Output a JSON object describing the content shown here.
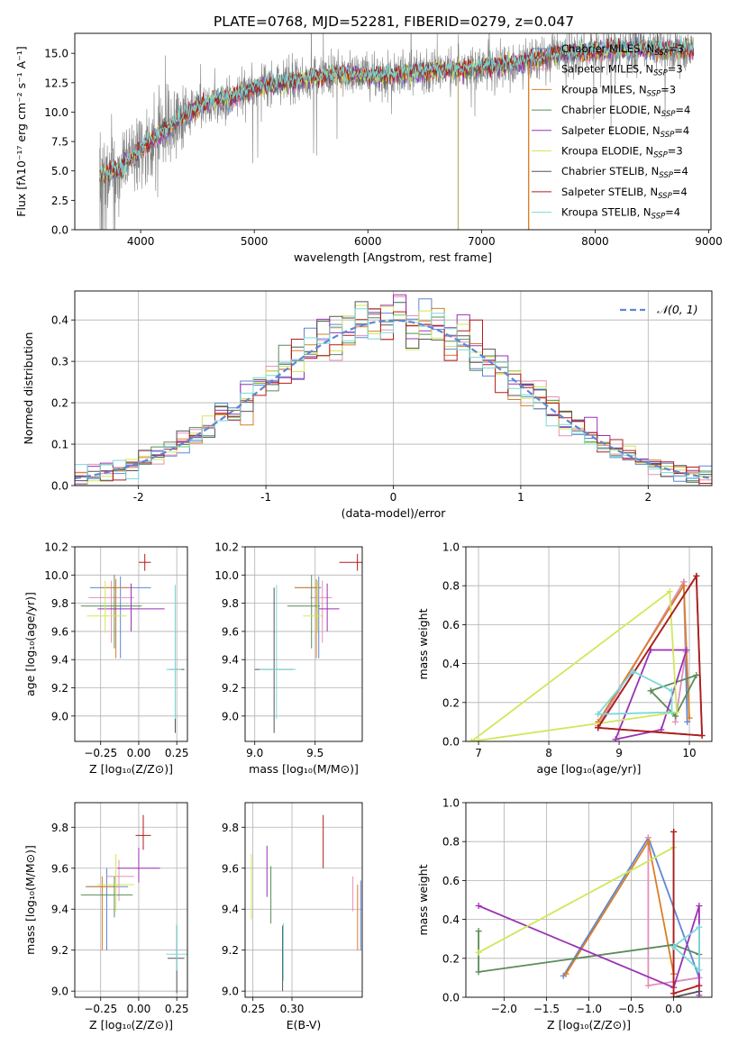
{
  "colors": {
    "chabrier_miles": "#5f86d4",
    "salpeter_miles": "#e58fb9",
    "kroupa_miles": "#d97f26",
    "chabrier_elodie": "#5a8c5a",
    "salpeter_elodie": "#9b31b5",
    "kroupa_elodie": "#cfe85a",
    "chabrier_stelib": "#555555",
    "salpeter_stelib": "#b31b1b",
    "kroupa_stelib": "#7ad9d9",
    "data": "#808080"
  },
  "chart_data": [
    {
      "id": "spectrum",
      "type": "line",
      "title": "PLATE=0768, MJD=52281, FIBERID=0279, z=0.047",
      "xlabel": "wavelength [Angstrom, rest frame]",
      "ylabel": "Flux [fλ10⁻¹⁷ erg cm⁻² s⁻¹ A⁻¹]",
      "xlim": [
        3420,
        9020
      ],
      "ylim": [
        0,
        16.7
      ],
      "xticks": [
        4000,
        5000,
        6000,
        7000,
        8000,
        9000
      ],
      "yticks": [
        0.0,
        2.5,
        5.0,
        7.5,
        10.0,
        12.5,
        15.0
      ],
      "grid": false,
      "legend": "right",
      "model_anchor_x": [
        3640,
        3800,
        4000,
        4200,
        4400,
        4600,
        4800,
        5000,
        5200,
        5400,
        5600,
        5800,
        6000,
        6200,
        6400,
        6600,
        6800,
        7000,
        7200,
        7400,
        7600,
        7800,
        8000,
        8200,
        8400,
        8600,
        8800
      ],
      "model_anchor_y": [
        4.6,
        5.0,
        6.8,
        8.3,
        9.8,
        10.8,
        11.3,
        12.0,
        12.4,
        12.7,
        13.1,
        13.3,
        13.1,
        13.0,
        13.3,
        13.5,
        13.6,
        13.7,
        14.0,
        14.3,
        14.8,
        15.0,
        15.2,
        15.3,
        15.4,
        15.3,
        15.3
      ],
      "series": [
        {
          "name": "Chabrier MILES, N",
          "nssp": "3",
          "color": "#5f86d4"
        },
        {
          "name": "Salpeter MILES, N",
          "nssp": "3",
          "color": "#e58fb9"
        },
        {
          "name": "Kroupa MILES, N",
          "nssp": "3",
          "color": "#d97f26"
        },
        {
          "name": "Chabrier ELODIE, N",
          "nssp": "4",
          "color": "#5a8c5a"
        },
        {
          "name": "Salpeter ELODIE, N",
          "nssp": "4",
          "color": "#9b31b5"
        },
        {
          "name": "Kroupa ELODIE, N",
          "nssp": "3",
          "color": "#cfe85a"
        },
        {
          "name": "Chabrier STELIB, N",
          "nssp": "4",
          "color": "#555555"
        },
        {
          "name": "Salpeter STELIB, N",
          "nssp": "4",
          "color": "#b31b1b"
        },
        {
          "name": "Kroupa STELIB, N",
          "nssp": "4",
          "color": "#7ad9d9"
        }
      ]
    },
    {
      "id": "residuals",
      "type": "line",
      "xlabel": "(data-model)/error",
      "ylabel": "Normed distribution",
      "xlim": [
        -2.5,
        2.5
      ],
      "ylim": [
        0,
        0.47
      ],
      "xticks": [
        -2,
        -1,
        0,
        1,
        2
      ],
      "yticks": [
        0.0,
        0.1,
        0.2,
        0.3,
        0.4
      ],
      "grid": true,
      "legend": "top-right",
      "legend_label": "𝒩(0, 1)",
      "curve": "normal pdf, mean 0, sigma 1",
      "bin_width": 0.1
    },
    {
      "id": "age_vs_Z",
      "type": "scatter",
      "xlabel": "Z [log₁₀(Z/Z⊙)]",
      "ylabel": "age  [log₁₀(age/yr)]",
      "xlim": [
        -0.42,
        0.32
      ],
      "ylim": [
        8.82,
        10.2
      ],
      "xticks": [
        -0.25,
        0.0,
        0.25
      ],
      "xticklabels": [
        "−0.25",
        "0.00",
        "0.25"
      ],
      "yticks": [
        9.0,
        9.2,
        9.4,
        9.6,
        9.8,
        10.0,
        10.2
      ],
      "grid": true,
      "points": [
        {
          "series": "Chabrier MILES",
          "x": -0.12,
          "y": 9.91,
          "xerr": [
            0.2,
            0.2
          ],
          "yerr": [
            0.5,
            0.08
          ]
        },
        {
          "series": "Salpeter MILES",
          "x": -0.18,
          "y": 9.84,
          "xerr": [
            0.15,
            0.15
          ],
          "yerr": [
            0.32,
            0.12
          ]
        },
        {
          "series": "Kroupa MILES",
          "x": -0.15,
          "y": 9.91,
          "xerr": [
            0.1,
            0.1
          ],
          "yerr": [
            0.5,
            0.06
          ]
        },
        {
          "series": "Chabrier ELODIE",
          "x": -0.16,
          "y": 9.78,
          "xerr": [
            0.22,
            0.18
          ],
          "yerr": [
            0.3,
            0.22
          ]
        },
        {
          "series": "Salpeter ELODIE",
          "x": -0.05,
          "y": 9.76,
          "xerr": [
            0.22,
            0.22
          ],
          "yerr": [
            0.16,
            0.18
          ]
        },
        {
          "series": "Kroupa ELODIE",
          "x": -0.22,
          "y": 9.71,
          "xerr": [
            0.12,
            0.14
          ],
          "yerr": [
            0.12,
            0.25
          ]
        },
        {
          "series": "Chabrier STELIB",
          "x": 0.24,
          "y": 9.33,
          "xerr": [
            0.04,
            0.06
          ],
          "yerr": [
            0.45,
            0.58
          ]
        },
        {
          "series": "Salpeter STELIB",
          "x": 0.04,
          "y": 10.09,
          "xerr": [
            0.04,
            0.04
          ],
          "yerr": [
            0.06,
            0.06
          ]
        },
        {
          "series": "Kroupa STELIB",
          "x": 0.24,
          "y": 9.33,
          "xerr": [
            0.06,
            0.04
          ],
          "yerr": [
            0.35,
            0.6
          ]
        }
      ]
    },
    {
      "id": "age_vs_mass",
      "type": "scatter",
      "xlabel": "mass [log₁₀(M/M⊙)]",
      "ylabel": "",
      "xlim": [
        8.92,
        9.89
      ],
      "ylim": [
        8.82,
        10.2
      ],
      "xticks": [
        9.0,
        9.5
      ],
      "xticklabels": [
        "9.0",
        "9.5"
      ],
      "yticks": [
        9.0,
        9.2,
        9.4,
        9.6,
        9.8,
        10.0,
        10.2
      ],
      "grid": true,
      "points": [
        {
          "series": "Chabrier MILES",
          "x": 9.53,
          "y": 9.91,
          "xerr": [
            0.2,
            0.02
          ],
          "yerr": [
            0.5,
            0.08
          ]
        },
        {
          "series": "Salpeter MILES",
          "x": 9.56,
          "y": 9.84,
          "xerr": [
            0.1,
            0.08
          ],
          "yerr": [
            0.32,
            0.12
          ]
        },
        {
          "series": "Kroupa MILES",
          "x": 9.51,
          "y": 9.91,
          "xerr": [
            0.18,
            0.03
          ],
          "yerr": [
            0.5,
            0.06
          ]
        },
        {
          "series": "Chabrier ELODIE",
          "x": 9.47,
          "y": 9.78,
          "xerr": [
            0.2,
            0.07
          ],
          "yerr": [
            0.3,
            0.22
          ]
        },
        {
          "series": "Salpeter ELODIE",
          "x": 9.6,
          "y": 9.76,
          "xerr": [
            0.07,
            0.1
          ],
          "yerr": [
            0.16,
            0.18
          ]
        },
        {
          "series": "Kroupa ELODIE",
          "x": 9.52,
          "y": 9.71,
          "xerr": [
            0.12,
            0.05
          ],
          "yerr": [
            0.12,
            0.25
          ]
        },
        {
          "series": "Chabrier STELIB",
          "x": 9.16,
          "y": 9.33,
          "xerr": [
            0.16,
            0.16
          ],
          "yerr": [
            0.45,
            0.58
          ]
        },
        {
          "series": "Salpeter STELIB",
          "x": 9.85,
          "y": 10.09,
          "xerr": [
            0.15,
            0.12
          ],
          "yerr": [
            0.06,
            0.06
          ]
        },
        {
          "series": "Kroupa STELIB",
          "x": 9.18,
          "y": 9.33,
          "xerr": [
            0.14,
            0.16
          ],
          "yerr": [
            0.35,
            0.6
          ]
        }
      ]
    },
    {
      "id": "weight_vs_age",
      "type": "line",
      "xlabel": "age  [log₁₀(age/yr)]",
      "ylabel": "mass weight",
      "xlim": [
        6.82,
        10.32
      ],
      "ylim": [
        0,
        1.0
      ],
      "xticks": [
        7,
        8,
        9,
        10
      ],
      "xticklabels": [
        "7",
        "8",
        "9",
        "10"
      ],
      "yticks": [
        0.0,
        0.2,
        0.4,
        0.6,
        0.8,
        1.0
      ],
      "grid": true,
      "series": [
        {
          "name": "Chabrier MILES",
          "x": [
            8.7,
            9.92,
            9.97
          ],
          "y": [
            0.08,
            0.82,
            0.1
          ]
        },
        {
          "name": "Salpeter MILES",
          "x": [
            8.7,
            9.92,
            9.95,
            9.8
          ],
          "y": [
            0.08,
            0.82,
            0.46,
            0.1
          ]
        },
        {
          "name": "Kroupa MILES",
          "x": [
            8.7,
            9.92,
            10.0
          ],
          "y": [
            0.1,
            0.8,
            0.12
          ]
        },
        {
          "name": "Chabrier ELODIE",
          "x": [
            9.45,
            9.8,
            10.1,
            9.45
          ],
          "y": [
            0.26,
            0.13,
            0.34,
            0.26
          ]
        },
        {
          "name": "Salpeter ELODIE",
          "x": [
            8.95,
            9.45,
            9.96,
            9.6,
            8.95
          ],
          "y": [
            0.01,
            0.47,
            0.47,
            0.06,
            0.01
          ]
        },
        {
          "name": "Kroupa ELODIE",
          "x": [
            6.9,
            9.72,
            9.82,
            6.9
          ],
          "y": [
            0.0,
            0.77,
            0.15,
            0.0
          ]
        },
        {
          "name": "Chabrier STELIB",
          "x": [
            8.7,
            10.1,
            10.18,
            8.7
          ],
          "y": [
            0.07,
            0.85,
            0.03,
            0.07
          ]
        },
        {
          "name": "Salpeter STELIB",
          "x": [
            8.7,
            10.1,
            10.18,
            8.7
          ],
          "y": [
            0.07,
            0.85,
            0.03,
            0.07
          ]
        },
        {
          "name": "Kroupa STELIB",
          "x": [
            8.7,
            9.2,
            9.75,
            9.75,
            8.7
          ],
          "y": [
            0.14,
            0.36,
            0.26,
            0.15,
            0.14
          ]
        }
      ]
    },
    {
      "id": "mass_vs_Z",
      "type": "scatter",
      "xlabel": "Z [log₁₀(Z/Z⊙)]",
      "ylabel": "mass [log₁₀(M/M⊙)]",
      "xlim": [
        -0.42,
        0.32
      ],
      "ylim": [
        8.97,
        9.92
      ],
      "xticks": [
        -0.25,
        0.0,
        0.25
      ],
      "xticklabels": [
        "−0.25",
        "0.00",
        "0.25"
      ],
      "yticks": [
        9.0,
        9.2,
        9.4,
        9.6,
        9.8
      ],
      "grid": true,
      "points": [
        {
          "series": "Chabrier MILES",
          "x": -0.21,
          "y": 9.51,
          "xerr": [
            0.14,
            0.14
          ],
          "yerr": [
            0.31,
            0.09
          ]
        },
        {
          "series": "Salpeter MILES",
          "x": -0.13,
          "y": 9.56,
          "xerr": [
            0.08,
            0.1
          ],
          "yerr": [
            0.12,
            0.08
          ]
        },
        {
          "series": "Kroupa MILES",
          "x": -0.24,
          "y": 9.51,
          "xerr": [
            0.1,
            0.1
          ],
          "yerr": [
            0.31,
            0.05
          ]
        },
        {
          "series": "Chabrier ELODIE",
          "x": -0.16,
          "y": 9.47,
          "xerr": [
            0.22,
            0.12
          ],
          "yerr": [
            0.11,
            0.09
          ]
        },
        {
          "series": "Salpeter ELODIE",
          "x": 0.0,
          "y": 9.6,
          "xerr": [
            0.14,
            0.14
          ],
          "yerr": [
            0.07,
            0.1
          ]
        },
        {
          "series": "Kroupa ELODIE",
          "x": -0.15,
          "y": 9.52,
          "xerr": [
            0.12,
            0.12
          ],
          "yerr": [
            0.13,
            0.15
          ]
        },
        {
          "series": "Chabrier STELIB",
          "x": 0.25,
          "y": 9.16,
          "xerr": [
            0.06,
            0.05
          ],
          "yerr": [
            0.17,
            0.16
          ]
        },
        {
          "series": "Salpeter STELIB",
          "x": 0.03,
          "y": 9.76,
          "xerr": [
            0.05,
            0.05
          ],
          "yerr": [
            0.07,
            0.1
          ]
        },
        {
          "series": "Kroupa STELIB",
          "x": 0.25,
          "y": 9.18,
          "xerr": [
            0.07,
            0.07
          ],
          "yerr": [
            0.08,
            0.15
          ]
        }
      ]
    },
    {
      "id": "mass_vs_ebv",
      "type": "scatter",
      "xlabel": "E(B-V)",
      "ylabel": "",
      "xlim": [
        0.24,
        0.39
      ],
      "ylim": [
        8.97,
        9.92
      ],
      "xticks": [
        0.25,
        0.3
      ],
      "xticklabels": [
        "0.25",
        "0.30"
      ],
      "yticks": [
        9.0,
        9.2,
        9.4,
        9.6,
        9.8
      ],
      "grid": true,
      "points": [
        {
          "series": "Chabrier MILES",
          "x": 0.388,
          "y": 9.37,
          "xerr": [
            0,
            0
          ],
          "yerr": [
            0.17,
            0.17
          ]
        },
        {
          "series": "Salpeter MILES",
          "x": 0.378,
          "y": 9.46,
          "xerr": [
            0,
            0
          ],
          "yerr": [
            0.07,
            0.1
          ]
        },
        {
          "series": "Kroupa MILES",
          "x": 0.384,
          "y": 9.37,
          "xerr": [
            0,
            0
          ],
          "yerr": [
            0.17,
            0.15
          ]
        },
        {
          "series": "Chabrier ELODIE",
          "x": 0.273,
          "y": 9.44,
          "xerr": [
            0,
            0
          ],
          "yerr": [
            0.11,
            0.17
          ]
        },
        {
          "series": "Salpeter ELODIE",
          "x": 0.268,
          "y": 9.6,
          "xerr": [
            0,
            0
          ],
          "yerr": [
            0.14,
            0.11
          ]
        },
        {
          "series": "Kroupa ELODIE",
          "x": 0.248,
          "y": 9.51,
          "xerr": [
            0,
            0
          ],
          "yerr": [
            0.16,
            0.16
          ]
        },
        {
          "series": "Chabrier STELIB",
          "x": 0.288,
          "y": 9.18,
          "xerr": [
            0,
            0
          ],
          "yerr": [
            0.18,
            0.14
          ]
        },
        {
          "series": "Salpeter STELIB",
          "x": 0.34,
          "y": 9.7,
          "xerr": [
            0,
            0
          ],
          "yerr": [
            0.1,
            0.16
          ]
        },
        {
          "series": "Kroupa STELIB",
          "x": 0.289,
          "y": 9.2,
          "xerr": [
            0,
            0
          ],
          "yerr": [
            0.15,
            0.13
          ]
        }
      ]
    },
    {
      "id": "weight_vs_Z",
      "type": "line",
      "xlabel": "Z [log₁₀(Z/Z⊙)]",
      "ylabel": "mass weight",
      "xlim": [
        -2.45,
        0.45
      ],
      "ylim": [
        0,
        1.0
      ],
      "xticks": [
        -2.0,
        -1.5,
        -1.0,
        -0.5,
        0.0
      ],
      "xticklabels": [
        "−2.0",
        "−1.5",
        "−1.0",
        "−0.5",
        "0.0"
      ],
      "yticks": [
        0.0,
        0.2,
        0.4,
        0.6,
        0.8,
        1.0
      ],
      "grid": true,
      "series": [
        {
          "name": "Chabrier MILES",
          "x": [
            -1.3,
            -0.3,
            0.3,
            0.0
          ],
          "y": [
            0.11,
            0.82,
            0.1,
            0.08
          ]
        },
        {
          "name": "Salpeter MILES",
          "x": [
            -0.3,
            -0.3,
            0.3
          ],
          "y": [
            0.82,
            0.06,
            0.1
          ]
        },
        {
          "name": "Kroupa MILES",
          "x": [
            -1.27,
            -0.3,
            0.0
          ],
          "y": [
            0.12,
            0.8,
            0.12
          ]
        },
        {
          "name": "Chabrier ELODIE",
          "x": [
            -2.3,
            -2.3,
            0.0,
            0.3
          ],
          "y": [
            0.34,
            0.13,
            0.27,
            0.22
          ]
        },
        {
          "name": "Salpeter ELODIE",
          "x": [
            -2.3,
            0.0,
            0.3,
            0.3
          ],
          "y": [
            0.47,
            0.05,
            0.47,
            0.01
          ]
        },
        {
          "name": "Kroupa ELODIE",
          "x": [
            -2.3,
            0.0
          ],
          "y": [
            0.23,
            0.77
          ]
        },
        {
          "name": "Chabrier STELIB",
          "x": [
            0.0,
            0.0,
            0.3
          ],
          "y": [
            0.85,
            0.0,
            0.03
          ]
        },
        {
          "name": "Salpeter STELIB",
          "x": [
            0.0,
            0.0,
            0.3
          ],
          "y": [
            0.85,
            0.02,
            0.06
          ]
        },
        {
          "name": "Kroupa STELIB",
          "x": [
            0.0,
            0.3,
            0.3,
            0.0
          ],
          "y": [
            0.26,
            0.36,
            0.14,
            0.26
          ]
        }
      ]
    }
  ]
}
